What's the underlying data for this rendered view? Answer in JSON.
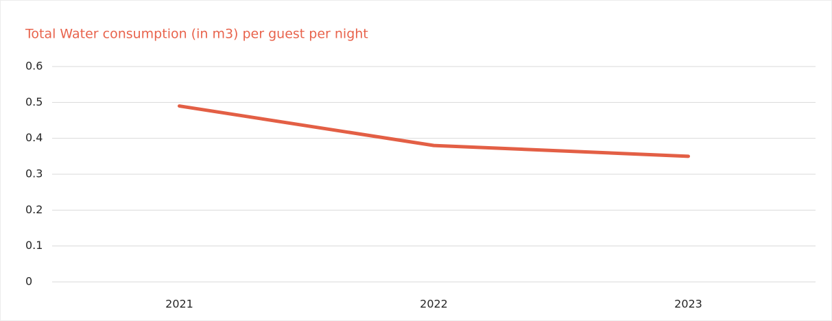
{
  "chart_data": {
    "type": "line",
    "title": "Total Water consumption (in m3) per guest per night",
    "categories": [
      "2021",
      "2022",
      "2023"
    ],
    "series": [
      {
        "name": "Total Water consumption (in m3) per guest per night",
        "color": "#e35f45",
        "values": [
          0.49,
          0.38,
          0.35
        ]
      }
    ],
    "ylim": [
      0,
      0.6
    ],
    "yticks": [
      0,
      0.1,
      0.2,
      0.3,
      0.4,
      0.5,
      0.6
    ],
    "grid": true
  }
}
